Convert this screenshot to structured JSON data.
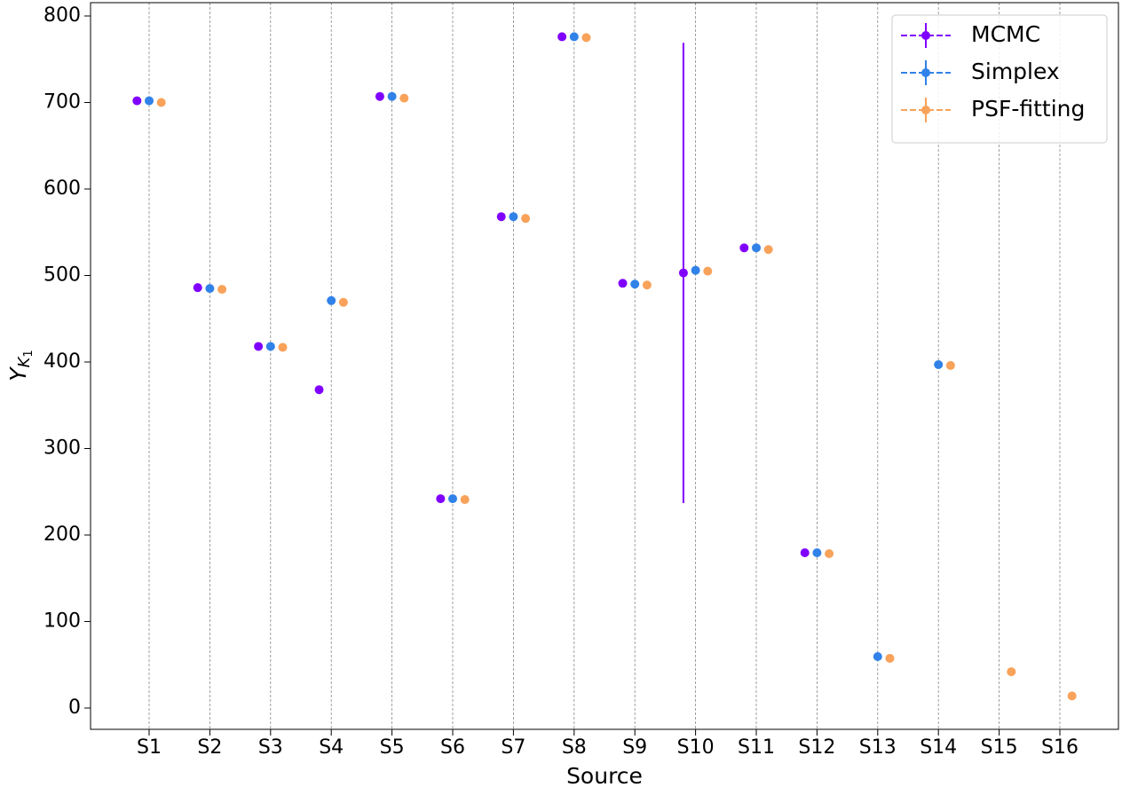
{
  "chart_data": {
    "type": "errorbar-scatter",
    "x_label": "Source",
    "y_label": [
      "Y",
      "K",
      "1"
    ],
    "categories": [
      "S1",
      "S2",
      "S3",
      "S4",
      "S5",
      "S6",
      "S7",
      "S8",
      "S9",
      "S10",
      "S11",
      "S12",
      "S13",
      "S14",
      "S15",
      "S16"
    ],
    "series": [
      {
        "name": "MCMC",
        "color": "#8000ff",
        "values": [
          702,
          486,
          418,
          368,
          707,
          242,
          568,
          776,
          491,
          503,
          532,
          179.5,
          null,
          null,
          null,
          null
        ],
        "errors": [
          null,
          null,
          null,
          null,
          null,
          null,
          null,
          null,
          null,
          266,
          null,
          null,
          null,
          null,
          null,
          null
        ]
      },
      {
        "name": "Simplex",
        "color": "#3182e8",
        "values": [
          702,
          485,
          418,
          471,
          707,
          242,
          568,
          776,
          490,
          506,
          532,
          179.5,
          59.5,
          397,
          null,
          null
        ]
      },
      {
        "name": "PSF-fitting",
        "color": "#f9a25a",
        "values": [
          700,
          484,
          417,
          469,
          705,
          241,
          566,
          775,
          489,
          505,
          530,
          178.5,
          57.5,
          396,
          42,
          14
        ]
      }
    ],
    "ylim": [
      -24.6,
      815.4
    ],
    "yticks": [
      0,
      100,
      200,
      300,
      400,
      500,
      600,
      700,
      800
    ],
    "grid": "x",
    "legend": "upper right"
  }
}
